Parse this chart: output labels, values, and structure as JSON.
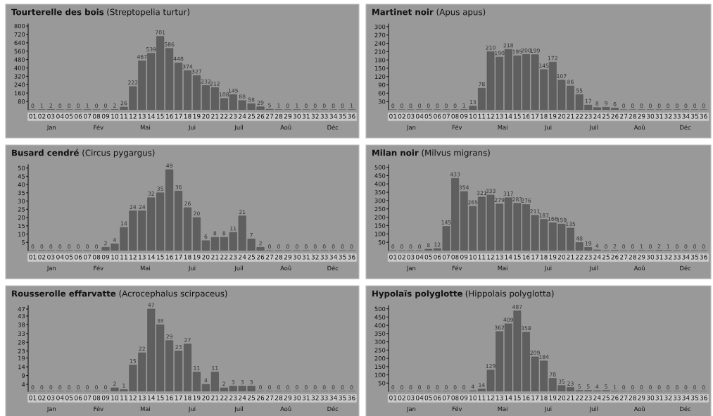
{
  "chart_data": [
    {
      "type": "bar",
      "title": "Tourterelle des bois",
      "subtitle": "(Streptopelia turtur)",
      "categories": [
        "01",
        "02",
        "03",
        "04",
        "05",
        "06",
        "07",
        "08",
        "09",
        "10",
        "11",
        "12",
        "13",
        "14",
        "15",
        "16",
        "17",
        "18",
        "19",
        "20",
        "21",
        "22",
        "23",
        "24",
        "25",
        "26",
        "27",
        "28",
        "29",
        "30",
        "31",
        "32",
        "33",
        "34",
        "35",
        "36"
      ],
      "values": [
        0,
        1,
        2,
        0,
        0,
        0,
        1,
        0,
        0,
        2,
        26,
        222,
        467,
        539,
        701,
        586,
        448,
        374,
        327,
        232,
        212,
        108,
        145,
        88,
        58,
        29,
        5,
        1,
        0,
        1,
        0,
        0,
        0,
        0,
        0,
        1
      ],
      "color": "#5f5f5f",
      "ylim": [
        0,
        820
      ],
      "yticks": [
        80,
        160,
        240,
        320,
        400,
        480,
        560,
        640,
        720,
        800
      ],
      "data_labels": true,
      "annotations": [
        "Jan",
        "Fév",
        "Mai",
        "Jui",
        "Juil",
        "Aoû",
        "Déc"
      ]
    },
    {
      "type": "bar",
      "title": "Martinet noir",
      "subtitle": "(Apus apus)",
      "categories": [
        "01",
        "02",
        "03",
        "04",
        "05",
        "06",
        "07",
        "08",
        "09",
        "10",
        "11",
        "12",
        "13",
        "14",
        "15",
        "16",
        "17",
        "18",
        "19",
        "20",
        "21",
        "22",
        "23",
        "24",
        "25",
        "26",
        "27",
        "28",
        "29",
        "30",
        "31",
        "32",
        "33",
        "34",
        "35",
        "36"
      ],
      "values": [
        0,
        0,
        0,
        0,
        0,
        0,
        0,
        0,
        1,
        13,
        78,
        210,
        190,
        218,
        195,
        200,
        199,
        145,
        172,
        107,
        86,
        55,
        17,
        8,
        9,
        6,
        0,
        0,
        0,
        0,
        0,
        0,
        0,
        0,
        0,
        0
      ],
      "color": "#5f5f5f",
      "ylim": [
        0,
        310
      ],
      "yticks": [
        30,
        60,
        90,
        120,
        150,
        180,
        210,
        240,
        270,
        300
      ],
      "data_labels": true,
      "annotations": [
        "Jan",
        "Fév",
        "Mai",
        "Jui",
        "Juil",
        "Aoû",
        "Déc"
      ]
    },
    {
      "type": "bar",
      "title": "Busard cendré",
      "subtitle": "(Circus pygargus)",
      "categories": [
        "01",
        "02",
        "03",
        "04",
        "05",
        "06",
        "07",
        "08",
        "09",
        "10",
        "11",
        "12",
        "13",
        "14",
        "15",
        "16",
        "17",
        "18",
        "19",
        "20",
        "21",
        "22",
        "23",
        "24",
        "25",
        "26",
        "27",
        "28",
        "29",
        "30",
        "31",
        "32",
        "33",
        "34",
        "35",
        "36"
      ],
      "values": [
        0,
        0,
        0,
        0,
        0,
        0,
        0,
        0,
        2,
        4,
        14,
        24,
        24,
        32,
        35,
        49,
        36,
        26,
        20,
        6,
        8,
        8,
        11,
        21,
        7,
        2,
        0,
        0,
        0,
        0,
        0,
        0,
        0,
        0,
        0,
        0
      ],
      "color": "#5f5f5f",
      "ylim": [
        0,
        52
      ],
      "yticks": [
        5,
        10,
        15,
        20,
        25,
        30,
        35,
        40,
        45,
        50
      ],
      "data_labels": true,
      "annotations": [
        "Jan",
        "Fév",
        "Mai",
        "Jui",
        "Juil",
        "Aoû",
        "Déc"
      ]
    },
    {
      "type": "bar",
      "title": "Milan noir",
      "subtitle": "(Milvus migrans)",
      "categories": [
        "01",
        "02",
        "03",
        "04",
        "05",
        "06",
        "07",
        "08",
        "09",
        "10",
        "11",
        "12",
        "13",
        "14",
        "15",
        "16",
        "17",
        "18",
        "19",
        "20",
        "21",
        "22",
        "23",
        "24",
        "25",
        "26",
        "27",
        "28",
        "29",
        "30",
        "31",
        "32",
        "33",
        "34",
        "35",
        "36"
      ],
      "values": [
        0,
        0,
        0,
        0,
        8,
        12,
        145,
        433,
        354,
        265,
        321,
        333,
        279,
        317,
        283,
        276,
        211,
        187,
        166,
        159,
        135,
        48,
        19,
        4,
        0,
        2,
        0,
        0,
        1,
        0,
        2,
        1,
        0,
        0,
        0,
        0
      ],
      "color": "#5f5f5f",
      "ylim": [
        0,
        515
      ],
      "yticks": [
        50,
        100,
        150,
        200,
        250,
        300,
        350,
        400,
        450,
        500
      ],
      "data_labels": true,
      "annotations": [
        "Jan",
        "Fév",
        "Mai",
        "Jui",
        "Juil",
        "Aoû",
        "Déc"
      ]
    },
    {
      "type": "bar",
      "title": "Rousserolle effarvatte",
      "subtitle": "(Acrocephalus scirpaceus)",
      "categories": [
        "01",
        "02",
        "03",
        "04",
        "05",
        "06",
        "07",
        "08",
        "09",
        "10",
        "11",
        "12",
        "13",
        "14",
        "15",
        "16",
        "17",
        "18",
        "19",
        "20",
        "21",
        "22",
        "23",
        "24",
        "25",
        "26",
        "27",
        "28",
        "29",
        "30",
        "31",
        "32",
        "33",
        "34",
        "35",
        "36"
      ],
      "values": [
        0,
        0,
        0,
        0,
        0,
        0,
        0,
        0,
        0,
        2,
        1,
        15,
        22,
        47,
        38,
        29,
        23,
        27,
        11,
        4,
        11,
        2,
        3,
        3,
        3,
        0,
        0,
        0,
        0,
        0,
        0,
        0,
        0,
        0,
        0,
        0
      ],
      "color": "#5f5f5f",
      "ylim": [
        0,
        49
      ],
      "yticks": [
        4,
        9,
        14,
        19,
        23,
        28,
        33,
        38,
        43,
        47
      ],
      "data_labels": true,
      "annotations": [
        "Jan",
        "Fév",
        "Mai",
        "Jui",
        "Juil",
        "Aoû",
        "Déc"
      ]
    },
    {
      "type": "bar",
      "title": "Hypolaïs polyglotte",
      "subtitle": "(Hippolais polyglotta)",
      "categories": [
        "01",
        "02",
        "03",
        "04",
        "05",
        "06",
        "07",
        "08",
        "09",
        "10",
        "11",
        "12",
        "13",
        "14",
        "15",
        "16",
        "17",
        "18",
        "19",
        "20",
        "21",
        "22",
        "23",
        "24",
        "25",
        "26",
        "27",
        "28",
        "29",
        "30",
        "31",
        "32",
        "33",
        "34",
        "35",
        "36"
      ],
      "values": [
        0,
        0,
        0,
        0,
        0,
        0,
        0,
        0,
        0,
        4,
        14,
        129,
        362,
        409,
        487,
        358,
        209,
        184,
        78,
        35,
        23,
        5,
        5,
        4,
        5,
        1,
        0,
        0,
        0,
        0,
        0,
        0,
        0,
        0,
        0,
        0
      ],
      "color": "#5f5f5f",
      "ylim": [
        0,
        520
      ],
      "yticks": [
        50,
        100,
        150,
        200,
        250,
        300,
        350,
        400,
        450,
        500
      ],
      "data_labels": true,
      "annotations": [
        "Jan",
        "Fév",
        "Mai",
        "Jui",
        "Juil",
        "Aoû",
        "Déc"
      ]
    }
  ]
}
